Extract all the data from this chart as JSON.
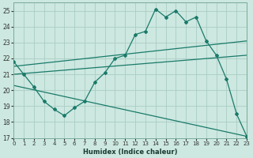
{
  "xlabel": "Humidex (Indice chaleur)",
  "bg_color": "#cce8e0",
  "grid_color": "#aaccC4",
  "line_color": "#1a7a6a",
  "xlim": [
    0,
    23
  ],
  "ylim": [
    17,
    25.5
  ],
  "yticks": [
    17,
    18,
    19,
    20,
    21,
    22,
    23,
    24,
    25
  ],
  "xticks": [
    0,
    1,
    2,
    3,
    4,
    5,
    6,
    7,
    8,
    9,
    10,
    11,
    12,
    13,
    14,
    15,
    16,
    17,
    18,
    19,
    20,
    21,
    22,
    23
  ],
  "line1_x": [
    0,
    1,
    2,
    3,
    4,
    5,
    6,
    7,
    8,
    9,
    10,
    11,
    12,
    13,
    14,
    15,
    16,
    17,
    18,
    19,
    20,
    21,
    22,
    23
  ],
  "line1_y": [
    21.8,
    21.0,
    20.2,
    19.3,
    18.8,
    18.4,
    18.9,
    19.3,
    20.5,
    21.1,
    22.0,
    22.2,
    23.5,
    23.7,
    25.1,
    24.6,
    25.0,
    24.3,
    24.6,
    23.1,
    22.2,
    20.7,
    18.5,
    17.1
  ],
  "line2_x": [
    0,
    23
  ],
  "line2_y": [
    21.5,
    23.1
  ],
  "line3_x": [
    0,
    23
  ],
  "line3_y": [
    21.0,
    22.2
  ],
  "line4_x": [
    0,
    23
  ],
  "line4_y": [
    20.3,
    17.1
  ]
}
